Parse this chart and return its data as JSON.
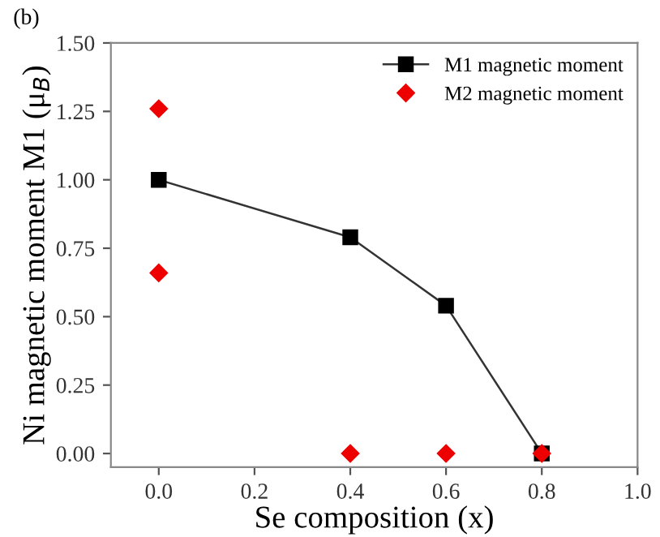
{
  "chart_data": {
    "type": "line",
    "xlabel": "Se composition (x)",
    "ylabel": "Ni magnetic moment M1 (μ$_{B}$)",
    "annotations": [
      "(b)"
    ],
    "series": [
      {
        "name": "M1 magnetic moment",
        "color": "#000000",
        "marker": "square",
        "x": [
          0.0,
          0.4,
          0.6,
          0.8
        ],
        "values": [
          1.0,
          0.79,
          0.54,
          0.0
        ]
      },
      {
        "name": "M2 magnetic moment",
        "type": "scatter",
        "color": "#ee0000",
        "marker": "diamond",
        "x": [
          0.0,
          0.0,
          0.4,
          0.6,
          0.8
        ],
        "values": [
          1.26,
          0.66,
          0.0,
          0.0,
          0.0
        ]
      }
    ],
    "xlim": [
      -0.1,
      1.0
    ],
    "xticks": [
      {
        "value": 0,
        "label": "0.0"
      },
      0.2,
      0.4,
      0.6,
      0.8,
      {
        "value": 1,
        "label": "1.0"
      }
    ],
    "ylim": [
      -0.05,
      1.5
    ],
    "yticks": [
      {
        "value": 0,
        "label": "0.00"
      },
      {
        "value": 0.25,
        "label": "0.25"
      },
      {
        "value": 0.5,
        "label": "0.50"
      },
      {
        "value": 0.75,
        "label": "0.75"
      },
      {
        "value": 1,
        "label": "1.00"
      },
      {
        "value": 1.25,
        "label": "1.25"
      },
      {
        "value": 1.5,
        "label": "1.50"
      }
    ],
    "grid": false,
    "legend": "top right"
  }
}
